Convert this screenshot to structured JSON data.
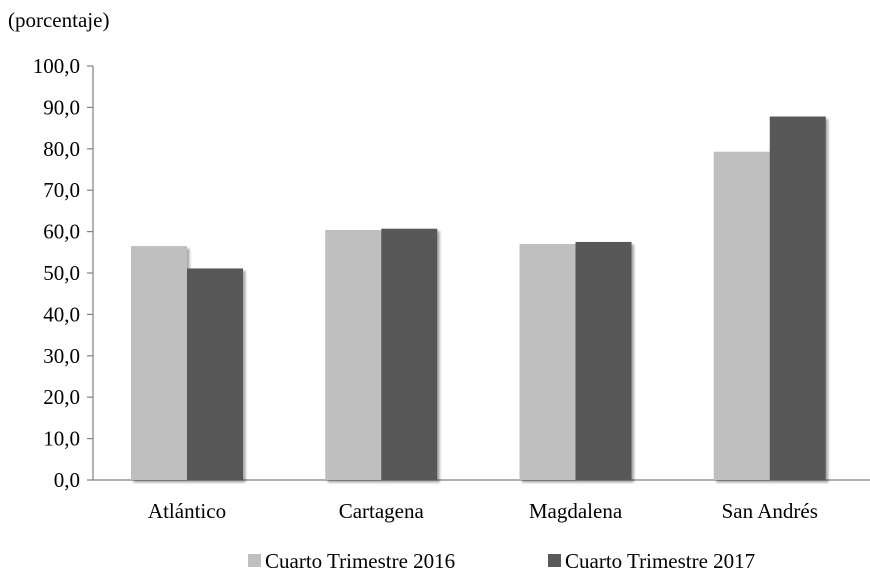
{
  "chart_data": {
    "type": "bar",
    "unit_label": "(porcentaje)",
    "categories": [
      "Atlántico",
      "Cartagena",
      "Magdalena",
      "San Andrés"
    ],
    "series": [
      {
        "name": "Cuarto Trimestre 2016",
        "color": "#BFBFBF",
        "values": [
          56.5,
          60.4,
          57.0,
          79.3
        ]
      },
      {
        "name": "Cuarto Trimestre 2017",
        "color": "#595959",
        "values": [
          51.1,
          60.7,
          57.5,
          87.8
        ]
      }
    ],
    "ylim": [
      0,
      100
    ],
    "yticks": [
      "0,0",
      "10,0",
      "20,0",
      "30,0",
      "40,0",
      "50,0",
      "60,0",
      "70,0",
      "80,0",
      "90,0",
      "100,0"
    ],
    "ytick_values": [
      0,
      10,
      20,
      30,
      40,
      50,
      60,
      70,
      80,
      90,
      100
    ],
    "grid": false,
    "legend_position": "bottom"
  }
}
